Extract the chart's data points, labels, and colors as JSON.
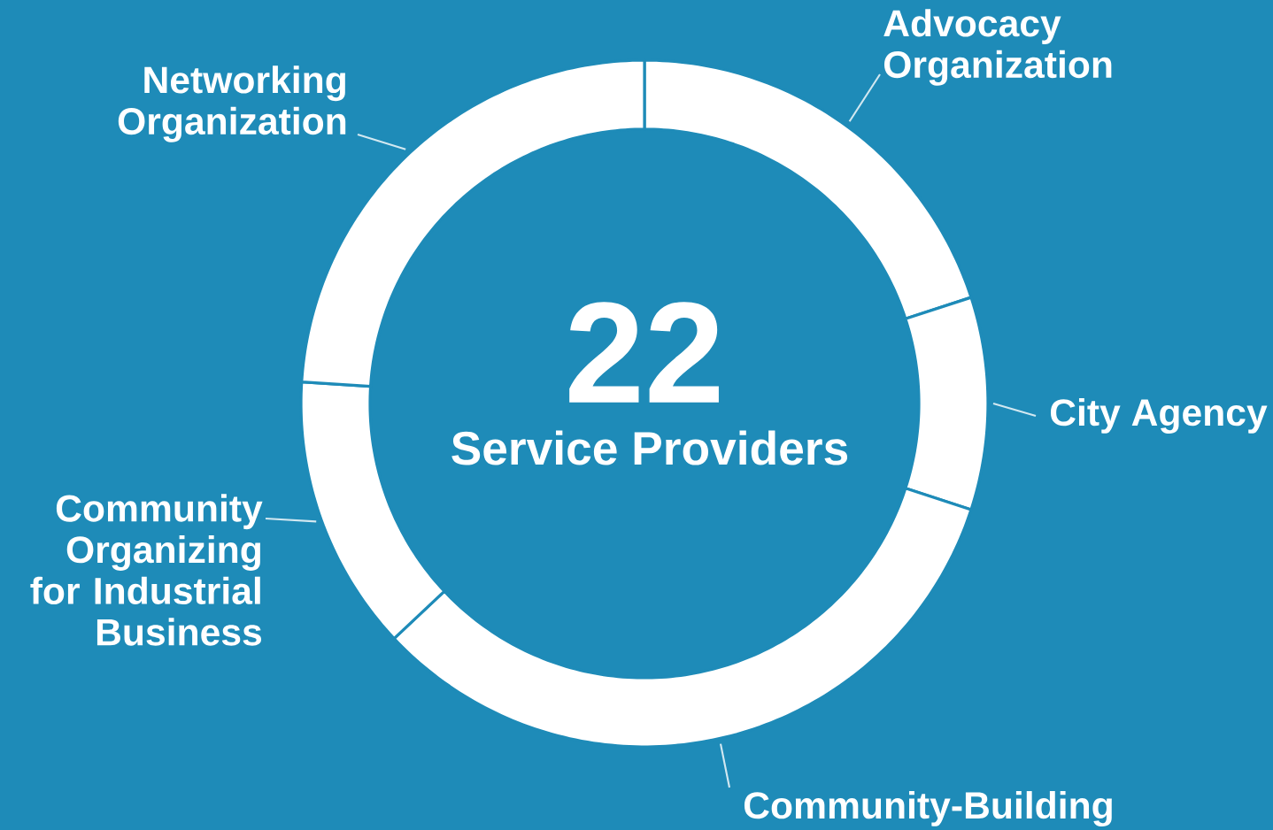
{
  "chart_data": {
    "type": "donut",
    "title": "22",
    "subtitle": "Service Providers",
    "categories": [
      "Advocacy Organization",
      "City Agency",
      "Community-Building",
      "Community Organizing for Industrial Business",
      "Networking Organization"
    ],
    "values": [
      20,
      10,
      33,
      13,
      24
    ],
    "colors": [
      "#ffffff",
      "#ffffff",
      "#ffffff",
      "#ffffff",
      "#ffffff"
    ]
  }
}
